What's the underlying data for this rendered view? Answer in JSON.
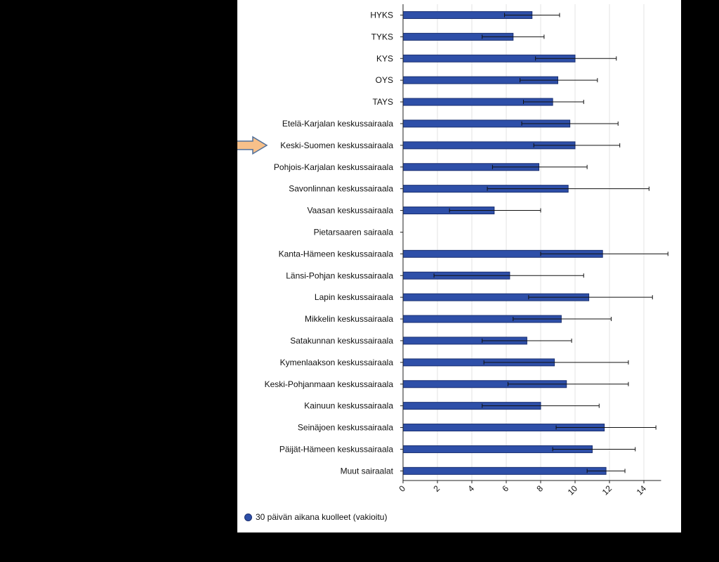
{
  "chart_data": {
    "type": "bar",
    "orientation": "horizontal",
    "categories": [
      "HYKS",
      "TYKS",
      "KYS",
      "OYS",
      "TAYS",
      "Etelä-Karjalan keskussairaala",
      "Keski-Suomen keskussairaala",
      "Pohjois-Karjalan keskussairaala",
      "Savonlinnan keskussairaala",
      "Vaasan keskussairaala",
      "Pietarsaaren sairaala",
      "Kanta-Hämeen keskussairaala",
      "Länsi-Pohjan keskussairaala",
      "Lapin keskussairaala",
      "Mikkelin keskussairaala",
      "Satakunnan keskussairaala",
      "Kymenlaakson keskussairaala",
      "Keski-Pohjanmaan keskussairaala",
      "Kainuun keskussairaala",
      "Seinäjoen keskussairaala",
      "Päijät-Hämeen keskussairaala",
      "Muut sairaalat"
    ],
    "series": [
      {
        "name": "30 päivän aikana kuolleet (vakioitu)",
        "values": [
          7.5,
          6.4,
          10.0,
          9.0,
          8.7,
          9.7,
          10.0,
          7.9,
          9.6,
          5.3,
          0,
          11.6,
          6.2,
          10.8,
          9.2,
          7.2,
          8.8,
          9.5,
          8.0,
          11.7,
          11.0,
          11.8
        ],
        "ci_low": [
          5.9,
          4.6,
          7.7,
          6.8,
          7.0,
          6.9,
          7.6,
          5.2,
          4.9,
          2.7,
          0,
          8.0,
          1.8,
          7.3,
          6.4,
          4.6,
          4.7,
          6.1,
          4.6,
          8.9,
          8.7,
          10.7
        ],
        "ci_high": [
          9.1,
          8.2,
          12.4,
          11.3,
          10.5,
          12.5,
          12.6,
          10.7,
          14.3,
          8.0,
          0,
          15.4,
          10.5,
          14.5,
          12.1,
          9.8,
          13.1,
          13.1,
          11.4,
          14.7,
          13.5,
          12.9
        ]
      }
    ],
    "xlim": [
      0,
      15
    ],
    "xticks": [
      0,
      2,
      4,
      6,
      8,
      10,
      12,
      14
    ],
    "grid": true,
    "legend_position": "bottom-left",
    "bar_color": "#2e4fa8",
    "bar_edge_color": "#1a2f70",
    "highlight": {
      "category": "Keski-Suomen keskussairaala",
      "marker": "arrow-right",
      "color": "#f7c08a"
    }
  }
}
